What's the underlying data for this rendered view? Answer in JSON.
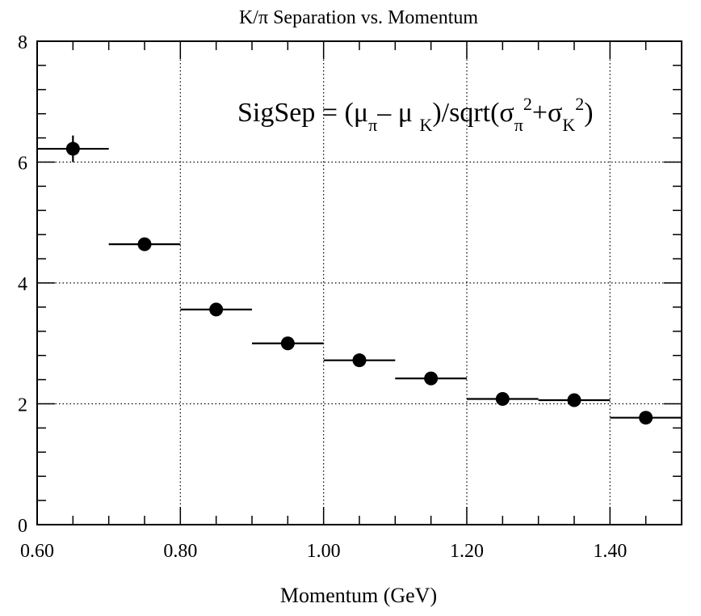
{
  "chart_data": {
    "type": "scatter",
    "title": "K/π Separation vs. Momentum",
    "xlabel": "Momentum (GeV)",
    "ylabel": "",
    "xlim": [
      0.6,
      1.5
    ],
    "ylim": [
      0,
      8
    ],
    "grid": true,
    "x_ticks": [
      "0.60",
      "0.80",
      "1.00",
      "1.20",
      "1.40"
    ],
    "x_tick_values": [
      0.6,
      0.8,
      1.0,
      1.2,
      1.4
    ],
    "y_ticks": [
      "0",
      "2",
      "4",
      "6",
      "8"
    ],
    "y_tick_values": [
      0,
      2,
      4,
      6,
      8
    ],
    "annotation": {
      "parts": [
        "SigSep = (μ",
        "π",
        "– μ ",
        "K",
        ")/sqrt(σ",
        "π",
        "2",
        "+σ",
        "K",
        "2",
        ")"
      ]
    },
    "points": [
      {
        "x": 0.65,
        "y": 6.22,
        "xerr": 0.05,
        "yerr": 0.22
      },
      {
        "x": 0.75,
        "y": 4.64,
        "xerr": 0.05,
        "yerr": 0.0
      },
      {
        "x": 0.85,
        "y": 3.56,
        "xerr": 0.05,
        "yerr": 0.0
      },
      {
        "x": 0.95,
        "y": 3.0,
        "xerr": 0.05,
        "yerr": 0.0
      },
      {
        "x": 1.05,
        "y": 2.72,
        "xerr": 0.05,
        "yerr": 0.0
      },
      {
        "x": 1.15,
        "y": 2.42,
        "xerr": 0.05,
        "yerr": 0.0
      },
      {
        "x": 1.25,
        "y": 2.08,
        "xerr": 0.05,
        "yerr": 0.0
      },
      {
        "x": 1.35,
        "y": 2.06,
        "xerr": 0.05,
        "yerr": 0.0
      },
      {
        "x": 1.45,
        "y": 1.77,
        "xerr": 0.05,
        "yerr": 0.0
      }
    ]
  }
}
